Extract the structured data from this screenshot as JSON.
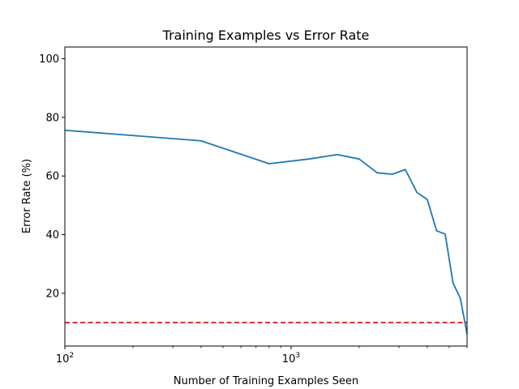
{
  "chart_data": {
    "type": "line",
    "title": "Training Examples vs Error Rate",
    "xlabel": "Number of Training Examples Seen",
    "ylabel": "Error Rate (%)",
    "xscale": "log",
    "xlim": [
      100,
      6000
    ],
    "ylim": [
      2,
      104
    ],
    "grid": false,
    "legend": "none",
    "yticks": [
      20,
      40,
      60,
      80,
      100
    ],
    "xticks": [
      {
        "value": 100,
        "base": "10",
        "exp": "2"
      },
      {
        "value": 1000,
        "base": "10",
        "exp": "3"
      }
    ],
    "series": [
      {
        "color": "#1f77b4",
        "style": "solid",
        "x": [
          100,
          400,
          800,
          1200,
          1600,
          2000,
          2400,
          2800,
          3200,
          3600,
          4000,
          4400,
          4800,
          5200,
          5600,
          6000
        ],
        "y": [
          75.6,
          72.0,
          64.2,
          65.8,
          67.3,
          65.8,
          61.1,
          60.6,
          62.2,
          54.4,
          52.0,
          41.3,
          40.2,
          23.5,
          18.3,
          6.1
        ]
      }
    ],
    "reference_lines": [
      {
        "orientation": "horizontal",
        "y": 10,
        "color": "#d62728",
        "style": "dashed"
      }
    ]
  }
}
